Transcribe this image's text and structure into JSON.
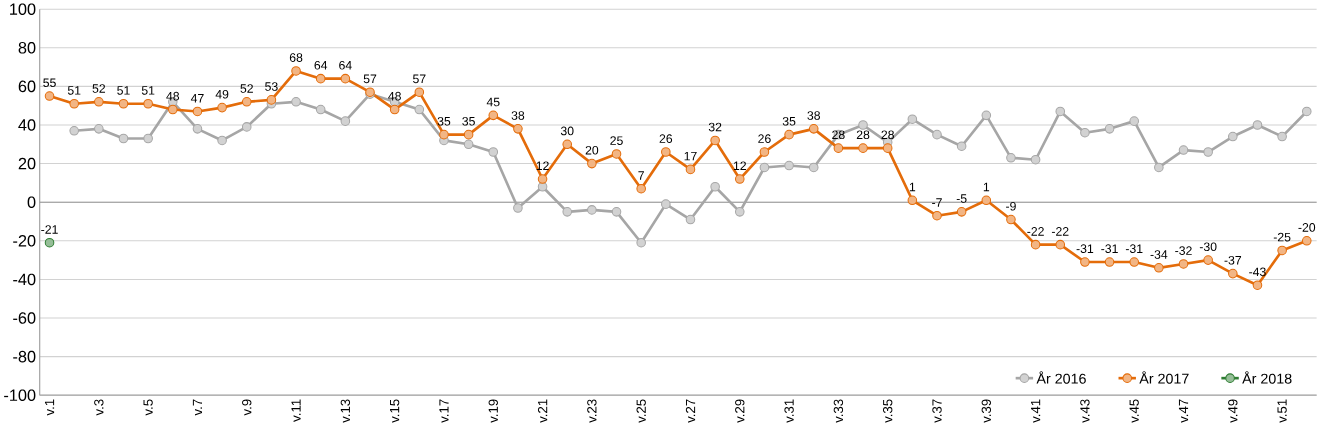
{
  "chart_data": {
    "type": "line",
    "categories": [
      "v.1",
      null,
      "v.3",
      null,
      "v.5",
      null,
      "v.7",
      null,
      "v.9",
      null,
      "v.11",
      null,
      "v.13",
      null,
      "v.15",
      null,
      "v.17",
      null,
      "v.19",
      null,
      "v.21",
      null,
      "v.23",
      null,
      "v.25",
      null,
      "v.27",
      null,
      "v.29",
      null,
      "v.31",
      null,
      "v.33",
      null,
      "v.35",
      null,
      "v.37",
      null,
      "v.39",
      null,
      "v.41",
      null,
      "v.43",
      null,
      "v.45",
      null,
      "v.47",
      null,
      "v.49",
      null,
      "v.51",
      null
    ],
    "series": [
      {
        "name": "År 2016",
        "color": "#a6a6a6",
        "values": [
          null,
          37,
          38,
          33,
          33,
          52,
          38,
          32,
          39,
          51,
          52,
          48,
          42,
          56,
          52,
          48,
          32,
          30,
          26,
          -3,
          8,
          -5,
          -4,
          -5,
          -21,
          -1,
          -9,
          8,
          -5,
          18,
          19,
          18,
          35,
          40,
          31,
          43,
          35,
          29,
          45,
          23,
          22,
          47,
          36,
          38,
          42,
          18,
          27,
          26,
          34,
          40,
          34,
          47
        ]
      },
      {
        "name": "År 2017",
        "color": "#e46c0a",
        "values": [
          55,
          51,
          52,
          51,
          51,
          48,
          47,
          49,
          52,
          53,
          68,
          64,
          64,
          57,
          48,
          57,
          35,
          35,
          45,
          38,
          12,
          30,
          20,
          25,
          7,
          26,
          17,
          32,
          12,
          26,
          35,
          38,
          28,
          28,
          28,
          1,
          -7,
          -5,
          1,
          -9,
          -22,
          -22,
          -31,
          -31,
          -31,
          -34,
          -32,
          -30,
          -37,
          -43,
          -25,
          -20
        ],
        "value_labels": [
          "55",
          "51",
          "52",
          "51",
          "51",
          "48",
          "47",
          "49",
          "52",
          "53",
          "68",
          "64",
          "64",
          "57",
          "48",
          "57",
          "35",
          "35",
          "45",
          "38",
          "12",
          "30",
          "20",
          "25",
          "7",
          "26",
          "17",
          "32",
          "12",
          "26",
          "35",
          "38",
          "28",
          "28",
          "28",
          "1",
          "-7",
          "-5",
          "1",
          "-9",
          "-22",
          "-22",
          "-31",
          "-31",
          "-31",
          "-34",
          "-32",
          "-30",
          "-37",
          "-43",
          "-25",
          "-20"
        ]
      },
      {
        "name": "År 2018",
        "color": "#2e7d32",
        "values": [
          -21,
          null,
          null,
          null,
          null,
          null,
          null,
          null,
          null,
          null,
          null,
          null,
          null,
          null,
          null,
          null,
          null,
          null,
          null,
          null,
          null,
          null,
          null,
          null,
          null,
          null,
          null,
          null,
          null,
          null,
          null,
          null,
          null,
          null,
          null,
          null,
          null,
          null,
          null,
          null,
          null,
          null,
          null,
          null,
          null,
          null,
          null,
          null,
          null,
          null,
          null,
          null
        ],
        "value_labels": [
          "-21",
          null,
          null,
          null,
          null,
          null,
          null,
          null,
          null,
          null,
          null,
          null,
          null,
          null,
          null,
          null,
          null,
          null,
          null,
          null,
          null,
          null,
          null,
          null,
          null,
          null,
          null,
          null,
          null,
          null,
          null,
          null,
          null,
          null,
          null,
          null,
          null,
          null,
          null,
          null,
          null,
          null,
          null,
          null,
          null,
          null,
          null,
          null,
          null,
          null,
          null,
          null
        ]
      }
    ],
    "ylim": [
      -100,
      100
    ],
    "yticks": [
      -100,
      -80,
      -60,
      -40,
      -20,
      0,
      20,
      40,
      60,
      80,
      100
    ],
    "grid": "y",
    "legend": "bottom right",
    "marker": "circle",
    "line_style": "solid"
  }
}
